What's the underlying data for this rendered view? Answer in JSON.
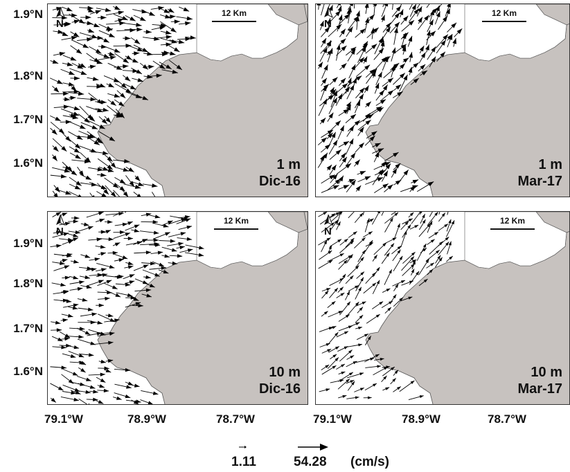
{
  "panels": [
    {
      "depth": "1 m",
      "month": "Dic-16"
    },
    {
      "depth": "1 m",
      "month": "Mar-17"
    },
    {
      "depth": "10 m",
      "month": "Dic-16"
    },
    {
      "depth": "10 m",
      "month": "Mar-17"
    }
  ],
  "north_label": "N",
  "scale_label": "12 Km",
  "lat_labels": [
    "1.9°N",
    "1.8°N",
    "1.7°N",
    "1.6°N"
  ],
  "lon_labels": [
    "79.1°W",
    "78.9°W",
    "78.7°W"
  ],
  "legend": {
    "small_value": "1.11",
    "large_value": "54.28",
    "unit": "(cm/s)"
  },
  "colors": {
    "land": "#c7c2bf",
    "water": "#ffffff",
    "arrow": "#000000",
    "border": "#333333"
  }
}
